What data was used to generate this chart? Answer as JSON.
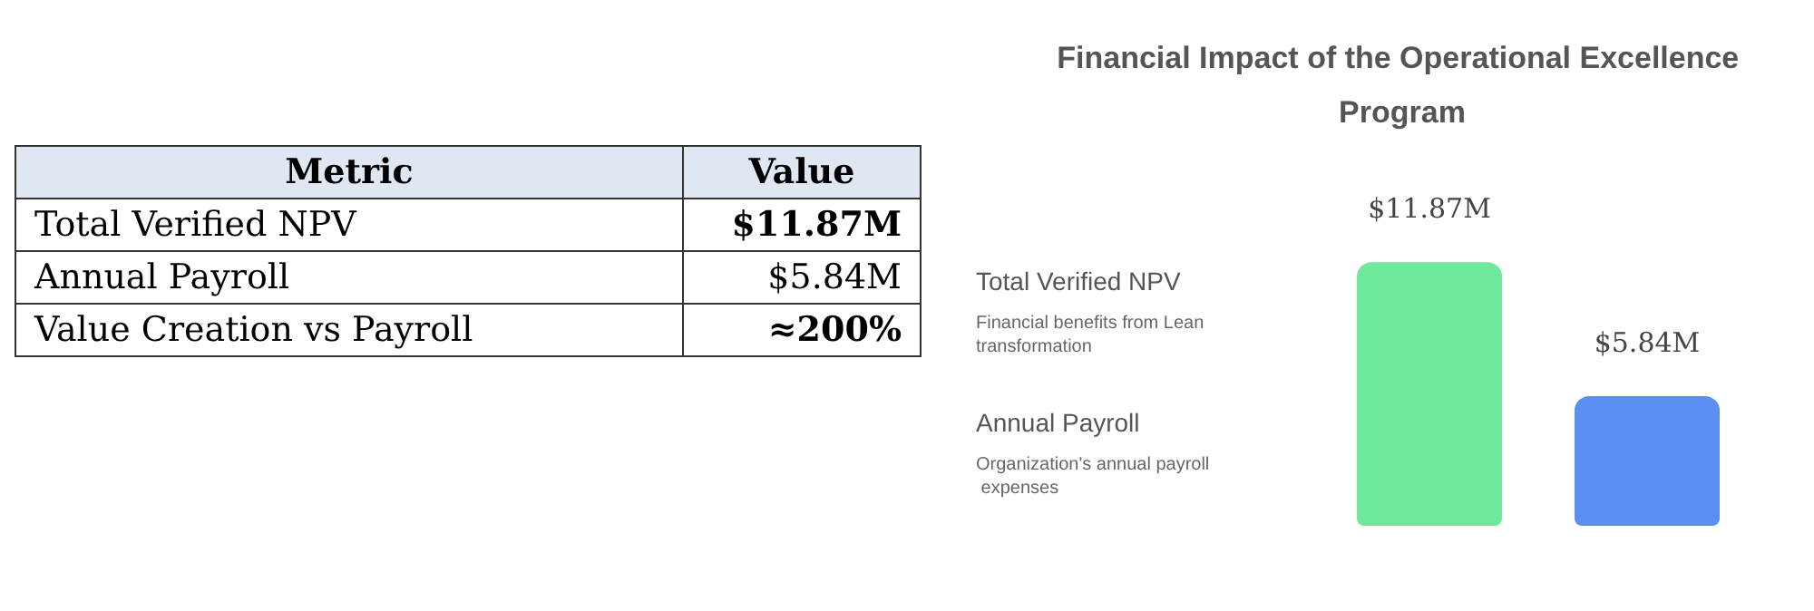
{
  "chart_data": [
    {
      "type": "other",
      "annotations": [
        "Metric",
        "Value",
        "Total Verified NPV",
        "$11.87M",
        "Annual Payroll",
        "$5.84M",
        "Value Creation vs Payroll",
        "≈200%"
      ]
    },
    {
      "type": "bar",
      "title": "Financial Impact of the Operational Excellence Program",
      "categories": [
        null,
        null
      ],
      "values": [
        11.87,
        5.84
      ],
      "colors": [
        "#6ee89a",
        "#5b8ef0"
      ],
      "value_labels": [
        "$11.87M",
        "$5.84M"
      ],
      "annotations": [
        "Total Verified NPV",
        "Financial benefits from Lean transformation",
        "Annual Payroll",
        "Organization's annual payroll expenses"
      ],
      "tick_labels": false
    }
  ]
}
